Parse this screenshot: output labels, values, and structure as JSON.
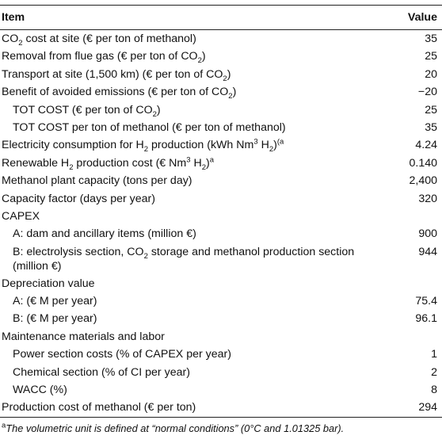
{
  "header": {
    "item": "Item",
    "value": "Value"
  },
  "rows": [
    {
      "pre": "CO",
      "sub": "2",
      "post": " cost at site (€ per ton of methanol)",
      "value": "35"
    },
    {
      "pre": "Removal from flue gas (€ per ton of CO",
      "sub": "2",
      "post": ")",
      "value": "25"
    },
    {
      "pre": "Transport at site (1,500 km) (€ per ton of CO",
      "sub": "2",
      "post": ")",
      "value": "20"
    },
    {
      "pre": "Benefit of avoided emissions (€ per ton of CO",
      "sub": "2",
      "post": ")",
      "value": "−20"
    },
    {
      "pre": "TOT COST (€ per ton of CO",
      "sub": "2",
      "post": ")",
      "value": "25"
    },
    {
      "pre": "TOT COST per ton of methanol (€ per ton of methanol)",
      "value": "35"
    },
    {
      "pre": "Electricity consumption for H",
      "sub": "2",
      "mid": " production (kWh Nm",
      "sup": "3",
      "mid2": " H",
      "sub2": "2",
      "post": ")",
      "sup2": "(a",
      "value": "4.24"
    },
    {
      "pre": "Renewable H",
      "sub": "2",
      "mid": " production cost (€ Nm",
      "sup": "3",
      "mid2": " H",
      "sub2": "2",
      "post": ")",
      "sup2": "a",
      "value": "0.140"
    },
    {
      "pre": "Methanol plant capacity (tons per day)",
      "value": "2,400"
    },
    {
      "pre": "Capacity factor (days per year)",
      "value": "320"
    },
    {
      "pre": "CAPEX",
      "value": ""
    },
    {
      "pre": "A: dam and ancillary items (million €)",
      "value": "900"
    },
    {
      "pre": "B: electrolysis section, CO",
      "sub": "2",
      "post": " storage and methanol production section (million €)",
      "value": "944"
    },
    {
      "pre": "Depreciation value",
      "value": ""
    },
    {
      "pre": "A: (€ M per year)",
      "value": "75.4"
    },
    {
      "pre": "B: (€ M per year)",
      "value": "96.1"
    },
    {
      "pre": "Maintenance materials and labor",
      "value": ""
    },
    {
      "pre": "Power section costs (% of CAPEX per year)",
      "value": "1"
    },
    {
      "pre": "Chemical section (% of CI per year)",
      "value": "2"
    },
    {
      "pre": "WACC (%)",
      "value": "8"
    },
    {
      "pre": "Production cost of methanol (€ per ton)",
      "value": "294"
    }
  ],
  "footnote": {
    "mark": "a",
    "text": "The volumetric unit is defined at “normal conditions” (0°C and 1.01325 bar)."
  }
}
